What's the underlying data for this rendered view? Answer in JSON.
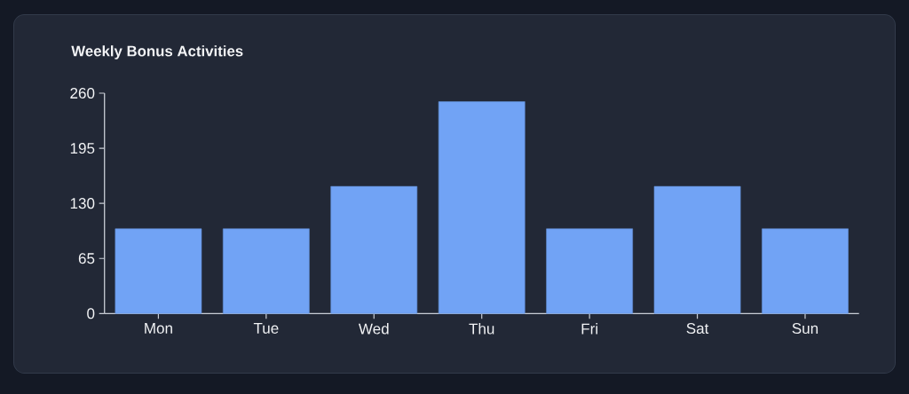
{
  "chart_data": {
    "type": "bar",
    "title": "Weekly Bonus Activities",
    "categories": [
      "Mon",
      "Tue",
      "Wed",
      "Thu",
      "Fri",
      "Sat",
      "Sun"
    ],
    "values": [
      100,
      100,
      150,
      250,
      100,
      150,
      100
    ],
    "color": "#71a3f5",
    "ylim": [
      0,
      260
    ],
    "yticks": [
      0,
      65,
      130,
      195,
      260
    ]
  }
}
